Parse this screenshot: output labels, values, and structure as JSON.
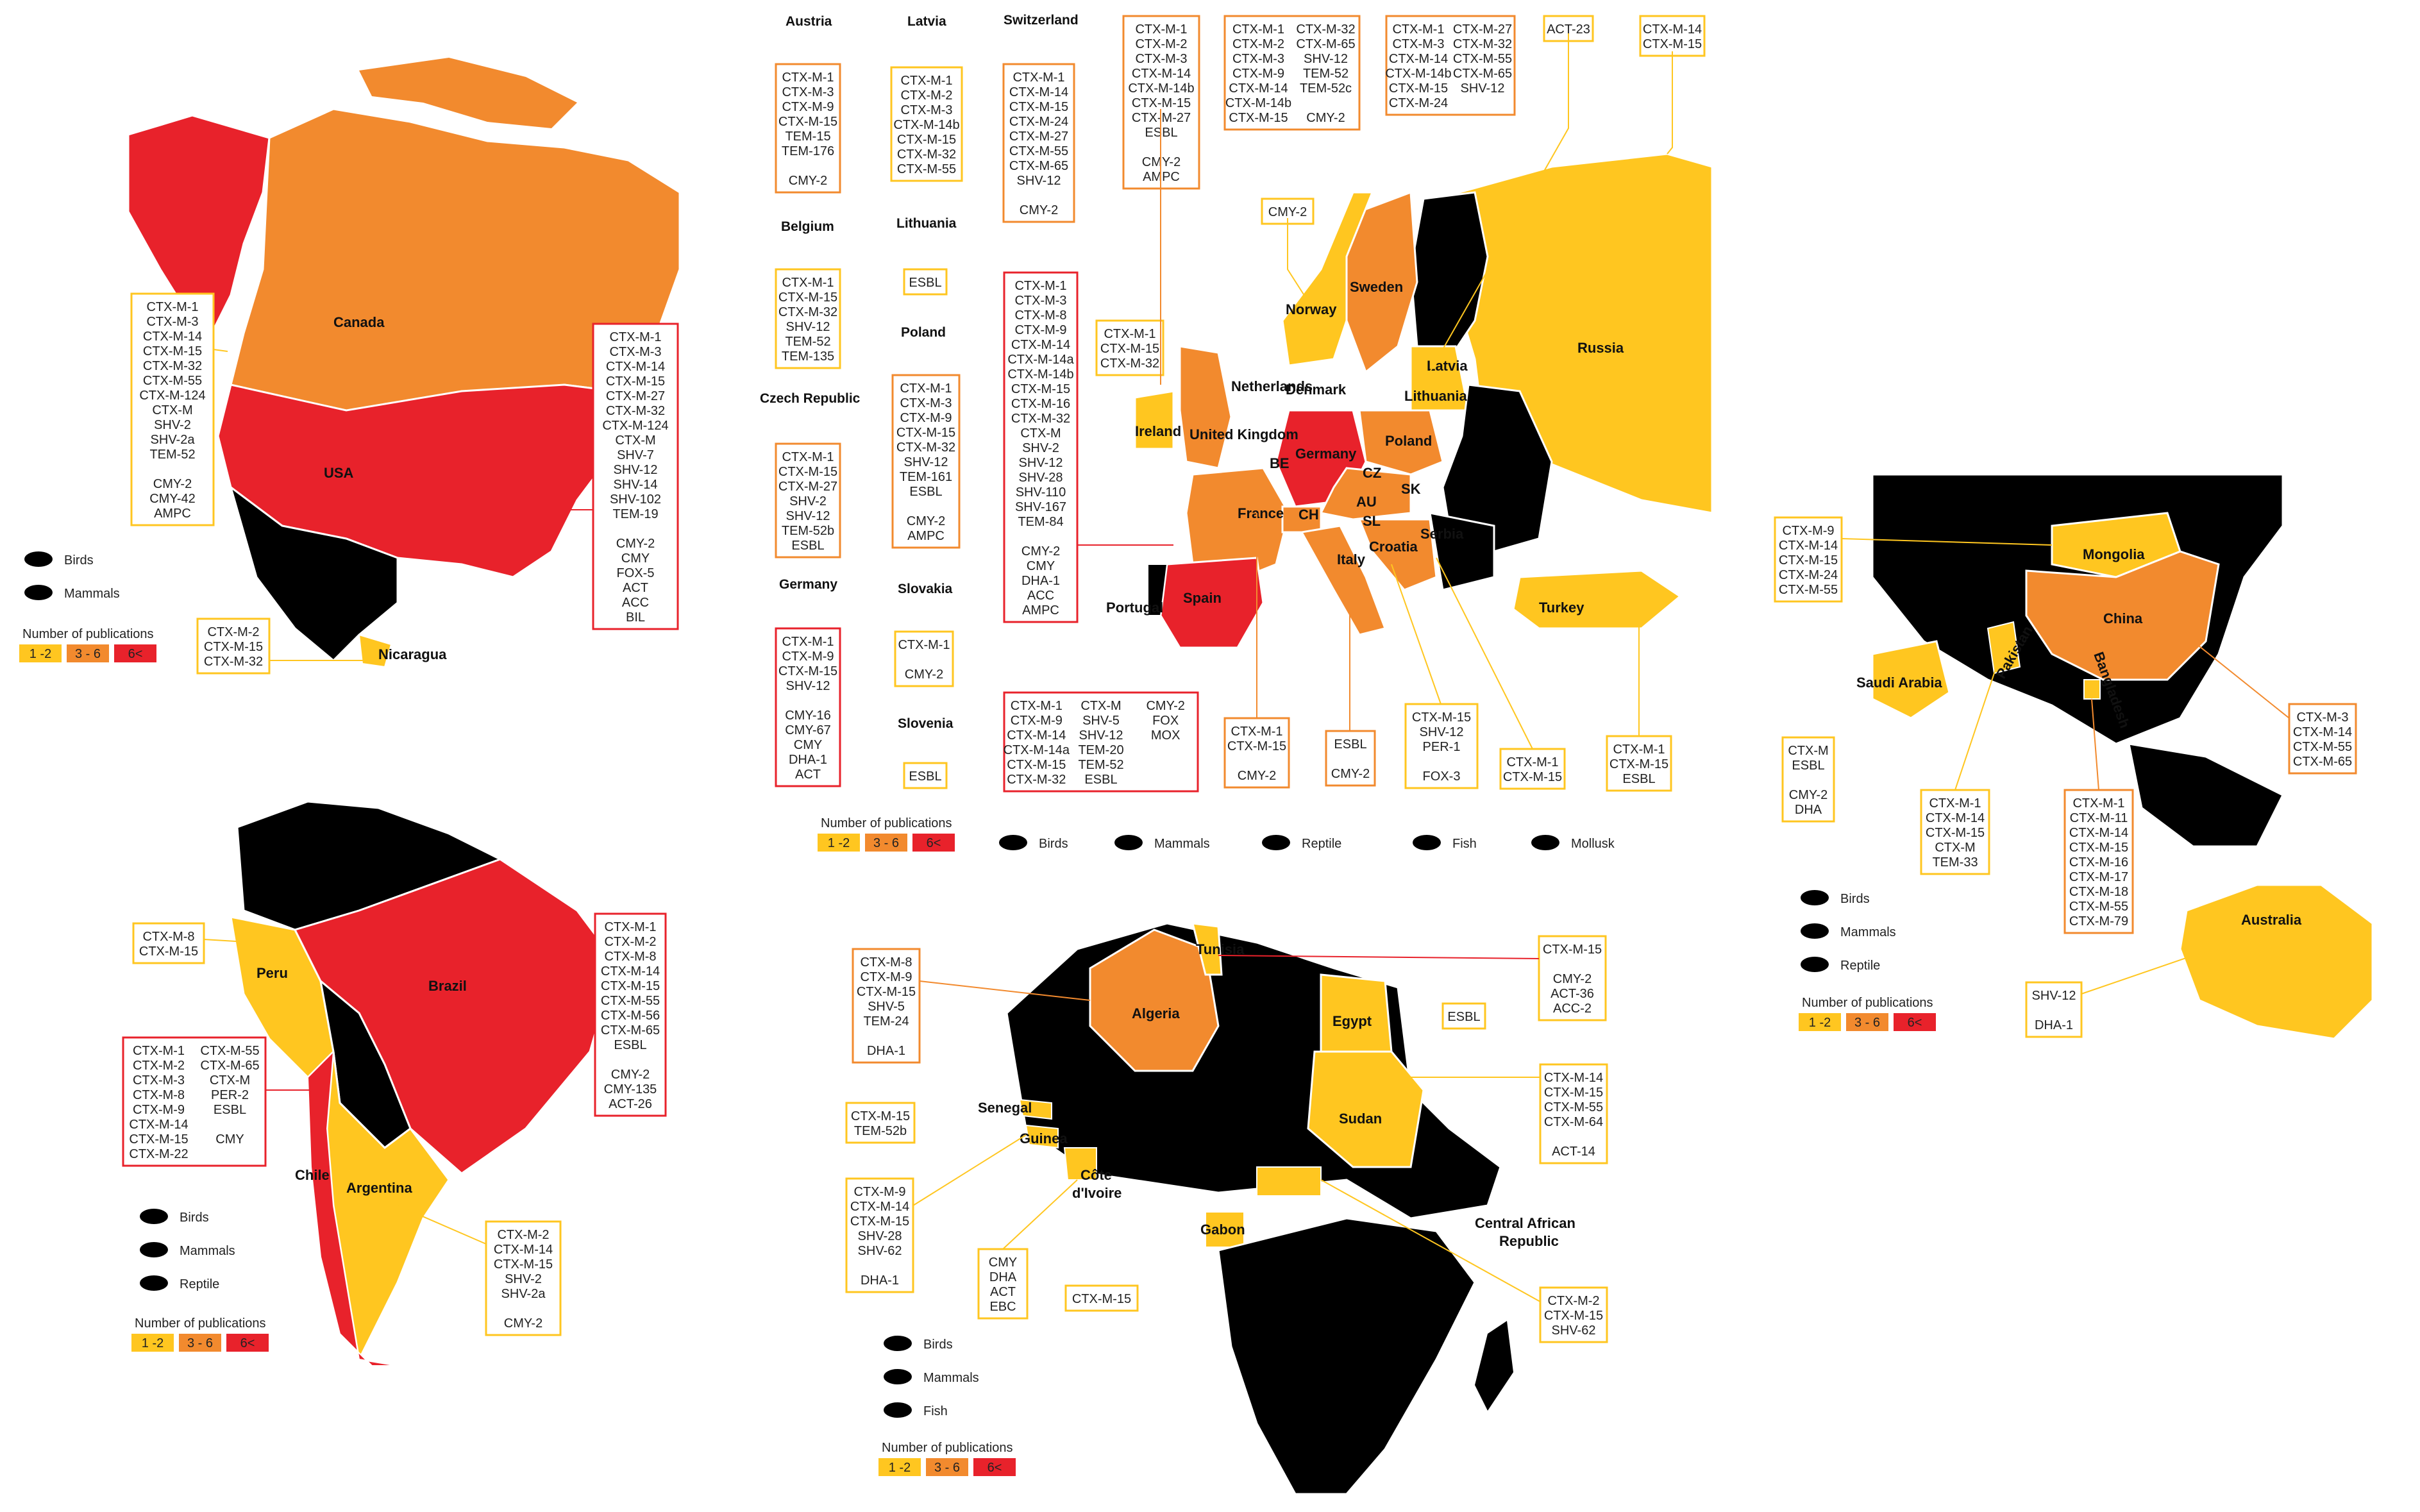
{
  "legend_colors": {
    "low": "#FFC620",
    "mid": "#F28A2E",
    "high": "#E8222B",
    "none": "#000000"
  },
  "legend": {
    "title": "Number of publications",
    "low": "1 -2",
    "mid": "3 - 6",
    "high": "6<"
  },
  "animals": {
    "birds": "Birds",
    "mammals": "Mammals",
    "reptile": "Reptile",
    "fish": "Fish",
    "mollusk": "Mollusk"
  },
  "north_america": {
    "canada": {
      "label": "Canada",
      "genes": [
        "CTX-M-1",
        "CTX-M-3",
        "CTX-M-14",
        "CTX-M-15",
        "CTX-M-32",
        "CTX-M-55",
        "CTX-M-124",
        "CTX-M",
        "SHV-2",
        "SHV-2a",
        "TEM-52",
        "",
        "CMY-2",
        "CMY-42",
        "AMPC"
      ]
    },
    "usa": {
      "label": "USA",
      "genes": [
        "CTX-M-1",
        "CTX-M-3",
        "CTX-M-14",
        "CTX-M-15",
        "CTX-M-27",
        "CTX-M-32",
        "CTX-M-124",
        "CTX-M",
        "SHV-7",
        "SHV-12",
        "SHV-14",
        "SHV-102",
        "TEM-19",
        "",
        "CMY-2",
        "CMY",
        "FOX-5",
        "ACT",
        "ACC",
        "BIL"
      ]
    },
    "nicaragua": {
      "label": "Nicaragua",
      "genes": [
        "CTX-M-2",
        "CTX-M-15",
        "CTX-M-32"
      ]
    }
  },
  "south_america": {
    "peru": {
      "label": "Peru",
      "genes": [
        "CTX-M-8",
        "CTX-M-15"
      ]
    },
    "brazil": {
      "label": "Brazil",
      "genes": [
        "CTX-M-1",
        "CTX-M-2",
        "CTX-M-8",
        "CTX-M-14",
        "CTX-M-15",
        "CTX-M-55",
        "CTX-M-56",
        "CTX-M-65",
        "ESBL",
        "",
        "CMY-2",
        "CMY-135",
        "ACT-26"
      ]
    },
    "chile": {
      "label": "Chile",
      "genes_a": [
        "CTX-M-1",
        "CTX-M-2",
        "CTX-M-3",
        "CTX-M-8",
        "CTX-M-9",
        "CTX-M-14",
        "CTX-M-15",
        "CTX-M-22"
      ],
      "genes_b": [
        "CTX-M-55",
        "CTX-M-65",
        "CTX-M",
        "PER-2",
        "ESBL",
        "",
        "CMY"
      ]
    },
    "argentina": {
      "label": "Argentina",
      "genes": [
        "CTX-M-2",
        "CTX-M-14",
        "CTX-M-15",
        "SHV-2",
        "SHV-2a",
        "",
        "CMY-2"
      ]
    }
  },
  "europe": {
    "austria": {
      "label": "Austria",
      "genes": [
        "CTX-M-1",
        "CTX-M-3",
        "CTX-M-9",
        "CTX-M-15",
        "TEM-15",
        "TEM-176",
        "",
        "CMY-2"
      ]
    },
    "latvia": {
      "label": "Latvia",
      "genes": [
        "CTX-M-1",
        "CTX-M-2",
        "CTX-M-3",
        "CTX-M-14b",
        "CTX-M-15",
        "CTX-M-32",
        "CTX-M-55"
      ]
    },
    "switzerland": {
      "label": "Switzerland",
      "genes": [
        "CTX-M-1",
        "CTX-M-14",
        "CTX-M-15",
        "CTX-M-24",
        "CTX-M-27",
        "CTX-M-55",
        "CTX-M-65",
        "SHV-12",
        "",
        "CMY-2"
      ]
    },
    "belgium": {
      "label": "Belgium",
      "genes": [
        "CTX-M-1",
        "CTX-M-15",
        "CTX-M-32",
        "SHV-12",
        "TEM-52",
        "TEM-135"
      ]
    },
    "lithuania": {
      "label": "Lithuania",
      "genes": [
        "ESBL"
      ]
    },
    "czech": {
      "label": "Czech Republic",
      "genes": [
        "CTX-M-1",
        "CTX-M-15",
        "CTX-M-27",
        "SHV-2",
        "SHV-12",
        "TEM-52b",
        "ESBL"
      ]
    },
    "poland": {
      "label": "Poland",
      "genes": [
        "CTX-M-1",
        "CTX-M-3",
        "CTX-M-9",
        "CTX-M-15",
        "CTX-M-32",
        "SHV-12",
        "TEM-161",
        "ESBL",
        "",
        "CMY-2",
        "AMPC"
      ]
    },
    "germany": {
      "label": "Germany",
      "genes": [
        "CTX-M-1",
        "CTX-M-9",
        "CTX-M-15",
        "SHV-12",
        "",
        "CMY-16",
        "CMY-67",
        "CMY",
        "DHA-1",
        "ACT"
      ]
    },
    "slovakia": {
      "label": "Slovakia",
      "genes": [
        "CTX-M-1",
        "",
        "CMY-2"
      ]
    },
    "slovenia": {
      "label": "Slovenia",
      "genes": [
        "ESBL"
      ]
    },
    "uk": {
      "genes": [
        "CTX-M-1",
        "CTX-M-2",
        "CTX-M-3",
        "CTX-M-14",
        "CTX-M-14b",
        "CTX-M-15",
        "CTX-M-27",
        "ESBL",
        "",
        "CMY-2",
        "AMPC"
      ]
    },
    "netherlands": {
      "genes_a": [
        "CTX-M-1",
        "CTX-M-2",
        "CTX-M-3",
        "CTX-M-9",
        "CTX-M-14",
        "CTX-M-14b",
        "CTX-M-15"
      ],
      "genes_b": [
        "CTX-M-32",
        "CTX-M-65",
        "SHV-12",
        "TEM-52",
        "TEM-52c",
        "",
        "CMY-2"
      ]
    },
    "sweden": {
      "genes_a": [
        "CTX-M-1",
        "CTX-M-3",
        "CTX-M-14",
        "CTX-M-14b",
        "CTX-M-15",
        "CTX-M-24"
      ],
      "genes_b": [
        "CTX-M-27",
        "CTX-M-32",
        "CTX-M-55",
        "CTX-M-65",
        "SHV-12"
      ]
    },
    "latvia_box": {
      "genes": [
        "ACT-23"
      ]
    },
    "russia": {
      "genes": [
        "CTX-M-14",
        "CTX-M-15"
      ]
    },
    "norway": {
      "genes": [
        "CMY-2"
      ]
    },
    "ireland": {
      "genes": [
        "CTX-M-1",
        "CTX-M-15",
        "CTX-M-32"
      ]
    },
    "germany_big": {
      "genes": [
        "CTX-M-1",
        "CTX-M-3",
        "CTX-M-8",
        "CTX-M-9",
        "CTX-M-14",
        "CTX-M-14a",
        "CTX-M-14b",
        "CTX-M-15",
        "CTX-M-16",
        "CTX-M-32",
        "CTX-M",
        "SHV-2",
        "SHV-12",
        "SHV-28",
        "SHV-110",
        "SHV-167",
        "TEM-84",
        "",
        "CMY-2",
        "CMY",
        "DHA-1",
        "ACC",
        "AMPC"
      ]
    },
    "spain": {
      "genes_a": [
        "CTX-M-1",
        "CTX-M-9",
        "CTX-M-14",
        "CTX-M-14a",
        "CTX-M-15",
        "CTX-M-32"
      ],
      "genes_b": [
        "CTX-M",
        "SHV-5",
        "SHV-12",
        "TEM-20",
        "TEM-52",
        "ESBL"
      ],
      "genes_c": [
        "CMY-2",
        "FOX",
        "MOX"
      ]
    },
    "france": {
      "genes": [
        "CTX-M-1",
        "CTX-M-15",
        "",
        "CMY-2"
      ]
    },
    "italy": {
      "genes": [
        "ESBL",
        "",
        "CMY-2"
      ]
    },
    "croatia": {
      "genes": [
        "CTX-M-15",
        "SHV-12",
        "PER-1",
        "",
        "FOX-3"
      ]
    },
    "serbia": {
      "genes": [
        "CTX-M-1",
        "CTX-M-15"
      ]
    },
    "turkey": {
      "genes": [
        "CTX-M-1",
        "CTX-M-15",
        "ESBL"
      ]
    },
    "labels": {
      "russia": "Russia",
      "sweden": "Sweden",
      "norway": "Norway",
      "latvia": "Latvia",
      "lithuania": "Lithuania",
      "denmark": "Denmark",
      "netherlands": "Netherlands",
      "ireland": "Ireland",
      "uk": "United Kingdom",
      "be": "BE",
      "germany": "Germany",
      "poland": "Poland",
      "cz": "CZ",
      "sk": "SK",
      "au": "AU",
      "sl": "SL",
      "ch": "CH",
      "france": "France",
      "portugal": "Portugal",
      "spain": "Spain",
      "italy": "Italy",
      "croatia": "Croatia",
      "serbia": "Serbia",
      "turkey": "Turkey"
    }
  },
  "africa": {
    "algeria": {
      "label": "Algeria",
      "genes": [
        "CTX-M-8",
        "CTX-M-9",
        "CTX-M-15",
        "SHV-5",
        "TEM-24",
        "",
        "DHA-1"
      ]
    },
    "tunisia": {
      "label": "Tunisia",
      "genes": [
        "CTX-M-15",
        "",
        "CMY-2",
        "ACT-36",
        "ACC-2"
      ]
    },
    "egypt": {
      "label": "Egypt",
      "genes": [
        "ESBL"
      ]
    },
    "sudan": {
      "label": "Sudan",
      "genes": [
        "CTX-M-14",
        "CTX-M-15",
        "CTX-M-55",
        "CTX-M-64",
        "",
        "ACT-14"
      ]
    },
    "senegal": {
      "label": "Senegal",
      "genes": [
        "CTX-M-15",
        "TEM-52b"
      ]
    },
    "guinea": {
      "label": "Guinea",
      "genes": [
        "CTX-M-9",
        "CTX-M-14",
        "CTX-M-15",
        "SHV-28",
        "SHV-62",
        "",
        "DHA-1"
      ]
    },
    "cote": {
      "label1": "Côte",
      "label2": "d'Ivoire",
      "genes": [
        "CMY",
        "DHA",
        "ACT",
        "EBC"
      ]
    },
    "gabon": {
      "label": "Gabon",
      "genes": [
        "CTX-M-15"
      ]
    },
    "car": {
      "label1": "Central African",
      "label2": "Republic",
      "genes": [
        "CTX-M-2",
        "CTX-M-15",
        "SHV-62"
      ]
    }
  },
  "asia": {
    "mongolia": {
      "label": "Mongolia",
      "genes": [
        "CTX-M-9",
        "CTX-M-14",
        "CTX-M-15",
        "CTX-M-24",
        "CTX-M-55"
      ]
    },
    "china": {
      "label": "China",
      "genes": [
        "CTX-M-3",
        "CTX-M-14",
        "CTX-M-55",
        "CTX-M-65"
      ]
    },
    "saudi": {
      "label": "Saudi Arabia",
      "genes": [
        "CTX-M",
        "ESBL",
        "",
        "CMY-2",
        "DHA"
      ]
    },
    "pakistan": {
      "label": "Pakistan",
      "genes": [
        "CTX-M-1",
        "CTX-M-14",
        "CTX-M-15",
        "CTX-M",
        "TEM-33"
      ]
    },
    "bangladesh": {
      "label": "Bangladesh",
      "genes": [
        "CTX-M-1",
        "CTX-M-11",
        "CTX-M-14",
        "CTX-M-15",
        "CTX-M-16",
        "CTX-M-17",
        "CTX-M-18",
        "CTX-M-55",
        "CTX-M-79"
      ]
    },
    "australia": {
      "label": "Australia",
      "genes": [
        "SHV-12",
        "",
        "DHA-1"
      ]
    }
  }
}
